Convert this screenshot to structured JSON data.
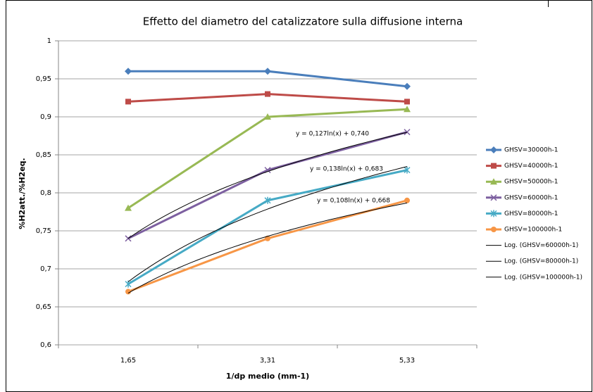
{
  "chart_data": {
    "type": "line",
    "title": "Effetto del diametro del catalizzatore sulla diffusione interna",
    "x_label": "1/dp medio (mm-1)",
    "y_label": "%H2att./%H2eq.",
    "categories": [
      "1,65",
      "3,31",
      "5,33"
    ],
    "ylim": [
      0.6,
      1
    ],
    "yticks": [
      {
        "value": 0.6,
        "label": "0,6"
      },
      {
        "value": 0.65,
        "label": "0,65"
      },
      {
        "value": 0.7,
        "label": "0,7"
      },
      {
        "value": 0.75,
        "label": "0,75"
      },
      {
        "value": 0.8,
        "label": "0,8"
      },
      {
        "value": 0.85,
        "label": "0,85"
      },
      {
        "value": 0.9,
        "label": "0,9"
      },
      {
        "value": 0.95,
        "label": "0,95"
      },
      1
    ],
    "grid": true,
    "legend": "right",
    "series": [
      {
        "name": "GHSV=30000h-1",
        "color": "#4a7ebb",
        "marker": "diamond",
        "values": [
          0.96,
          0.96,
          0.94
        ]
      },
      {
        "name": "GHSV=40000h-1",
        "color": "#be4b48",
        "marker": "square",
        "values": [
          0.92,
          0.93,
          0.92
        ]
      },
      {
        "name": "GHSV=50000h-1",
        "color": "#98b954",
        "marker": "triangle",
        "values": [
          0.78,
          0.9,
          0.91
        ]
      },
      {
        "name": "GHSV=60000h-1",
        "color": "#7d60a0",
        "marker": "x",
        "values": [
          0.74,
          0.83,
          0.88
        ]
      },
      {
        "name": "GHSV=80000h-1",
        "color": "#46aac5",
        "marker": "star",
        "values": [
          0.68,
          0.79,
          0.83
        ]
      },
      {
        "name": "GHSV=100000h-1",
        "color": "#f79646",
        "marker": "circle",
        "values": [
          0.67,
          0.74,
          0.79
        ]
      }
    ],
    "trendlines": [
      {
        "name": "Log. (GHSV=60000h-1)",
        "color": "#000000",
        "a": 0.127,
        "b": 0.74,
        "label": "y = 0,127ln(x) + 0,740"
      },
      {
        "name": "Log. (GHSV=80000h-1)",
        "color": "#000000",
        "a": 0.138,
        "b": 0.683,
        "label": "y = 0,138ln(x) + 0,683"
      },
      {
        "name": "Log. (GHSV=100000h-1)",
        "color": "#000000",
        "a": 0.108,
        "b": 0.668,
        "label": "y = 0,108ln(x) + 0,668"
      }
    ]
  }
}
